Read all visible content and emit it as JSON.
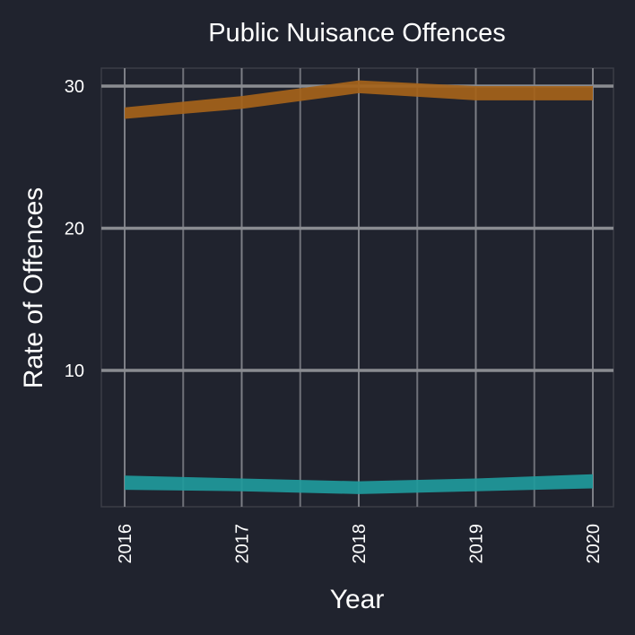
{
  "chart_data": {
    "type": "area",
    "title": "Public Nuisance Offences",
    "xlabel": "Year",
    "ylabel": "Rate of Offences",
    "x": [
      "2016",
      "2017",
      "2018",
      "2019",
      "2020"
    ],
    "yticks": [
      10,
      20,
      30
    ],
    "ylim": [
      0.3,
      31.2
    ],
    "series": [
      {
        "color": "#a5631a",
        "lower": [
          27.7,
          28.4,
          29.5,
          29.0,
          29.0
        ],
        "upper": [
          28.5,
          29.3,
          30.4,
          30.0,
          30.0
        ]
      },
      {
        "color": "#1f9a9c",
        "lower": [
          1.6,
          1.5,
          1.3,
          1.5,
          1.7
        ],
        "upper": [
          2.6,
          2.4,
          2.2,
          2.4,
          2.7
        ]
      }
    ],
    "grid": true,
    "background": "#20232e"
  }
}
